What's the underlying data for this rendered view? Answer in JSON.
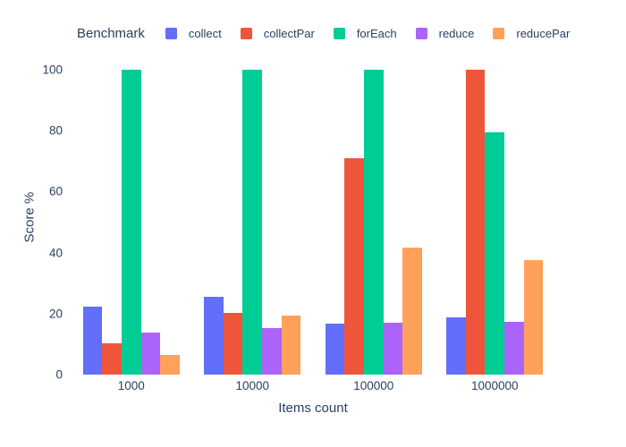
{
  "chart_data": {
    "type": "bar",
    "legend_title": "Benchmark",
    "legend_position": "top",
    "xlabel": "Items count",
    "ylabel": "Score %",
    "ylim": [
      0,
      100
    ],
    "yticks": [
      0,
      20,
      40,
      60,
      80,
      100
    ],
    "grid": false,
    "categories": [
      "1000",
      "10000",
      "100000",
      "1000000"
    ],
    "series": [
      {
        "name": "collect",
        "color": "#636EFA",
        "values": [
          22.3,
          25.5,
          16.7,
          18.8
        ]
      },
      {
        "name": "collectPar",
        "color": "#EF553B",
        "values": [
          10.3,
          20.2,
          71.0,
          100
        ]
      },
      {
        "name": "forEach",
        "color": "#00CC96",
        "values": [
          100,
          100,
          100,
          79.5
        ]
      },
      {
        "name": "reduce",
        "color": "#AB63FA",
        "values": [
          13.8,
          15.2,
          17.0,
          17.3
        ]
      },
      {
        "name": "reducePar",
        "color": "#FFA15A",
        "values": [
          6.5,
          19.4,
          41.6,
          37.5
        ]
      }
    ],
    "text_color": "#2a3f5f",
    "background_color": "#ffffff"
  }
}
